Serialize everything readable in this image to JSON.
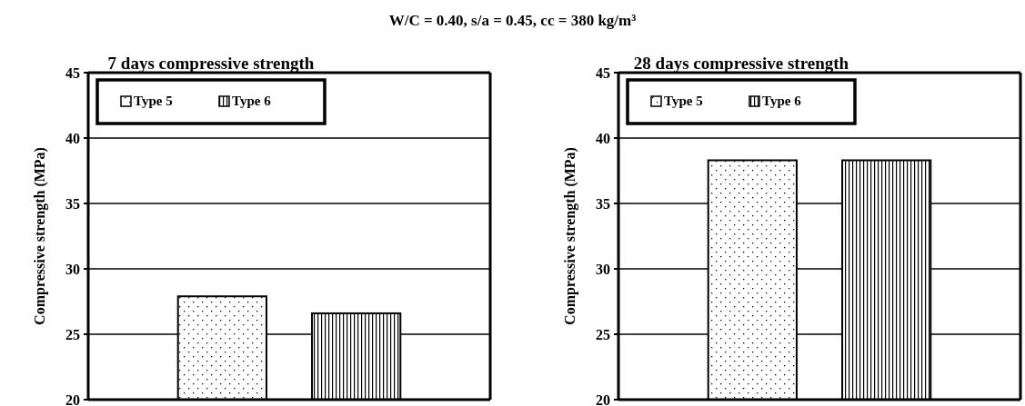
{
  "chart_data": [
    {
      "type": "bar",
      "title": "7 days compressive strength",
      "ylabel": "Compressive strength (MPa)",
      "annotations": [
        "W/C = 0.40, s/a = 0.45, cc = 380 kg/m³"
      ],
      "categories": [
        null
      ],
      "series": [
        {
          "name": "Type 5",
          "color": "#000000",
          "values": [
            27.9
          ]
        },
        {
          "name": "Type 6",
          "color": "#000000",
          "values": [
            26.6
          ]
        }
      ],
      "ylim": [
        20,
        45
      ],
      "yticks": [
        20,
        25,
        30,
        35,
        40,
        45
      ],
      "grid": "y",
      "legend": "top left"
    },
    {
      "type": "bar",
      "title": "28 days compressive strength",
      "ylabel": "Compressive strength (MPa)",
      "categories": [
        null
      ],
      "series": [
        {
          "name": "Type 5",
          "color": "#000000",
          "values": [
            38.3
          ]
        },
        {
          "name": "Type 6",
          "color": "#000000",
          "values": [
            38.3
          ]
        }
      ],
      "ylim": [
        20,
        45
      ],
      "yticks": [
        20,
        25,
        30,
        35,
        40,
        45
      ],
      "grid": "y",
      "legend": "top left"
    }
  ]
}
